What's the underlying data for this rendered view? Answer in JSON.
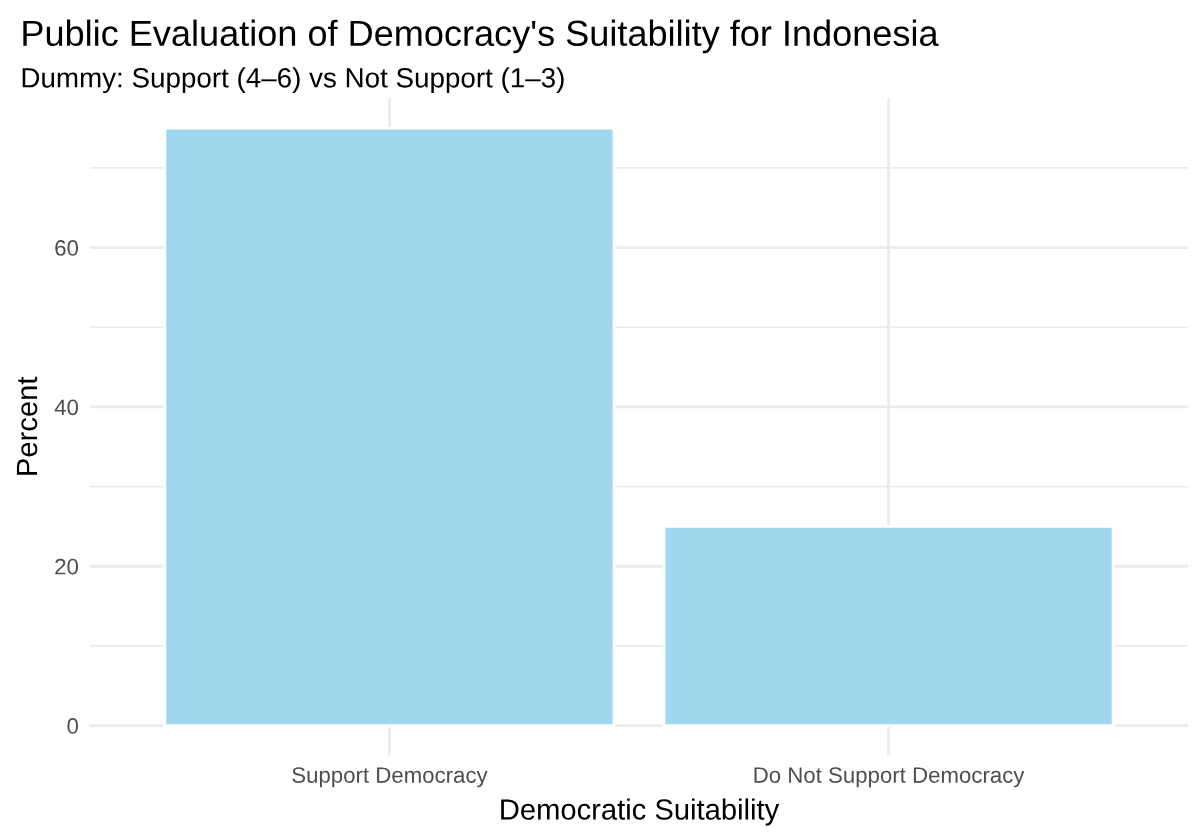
{
  "chart_data": {
    "type": "bar",
    "title": "Public Evaluation of Democracy's Suitability for Indonesia",
    "subtitle": "Dummy: Support (4–6) vs Not Support (1–3)",
    "xlabel": "Democratic Suitability",
    "ylabel": "Percent",
    "categories": [
      "Support Democracy",
      "Do Not Support Democracy"
    ],
    "values": [
      75,
      25
    ],
    "color": "#9fd7ef",
    "ylim": [
      -3.75,
      78.75
    ],
    "yticks": [
      0,
      {
        "value": 10,
        "label": null
      },
      20,
      {
        "value": 30,
        "label": null
      },
      40,
      {
        "value": 50,
        "label": null
      },
      60,
      {
        "value": 70,
        "label": null
      }
    ],
    "grid": true
  }
}
